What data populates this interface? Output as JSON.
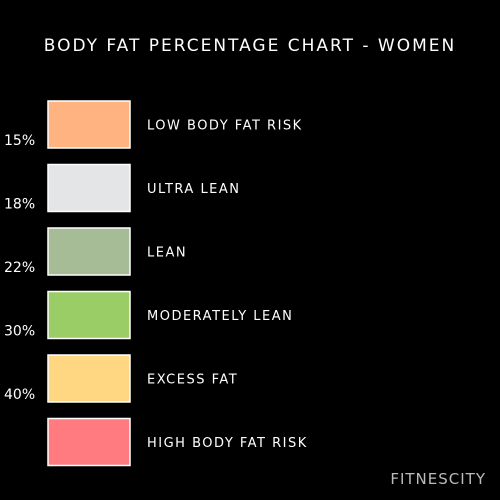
{
  "chart_data": {
    "type": "table",
    "title": "BODY FAT PERCENTAGE CHART - WOMEN",
    "thresholds": [
      "15%",
      "18%",
      "22%",
      "30%",
      "40%"
    ],
    "categories": [
      {
        "label": "LOW BODY FAT RISK",
        "color": "#FFB380"
      },
      {
        "label": "ULTRA LEAN",
        "color": "#E4E5E7"
      },
      {
        "label": "LEAN",
        "color": "#A6BC96"
      },
      {
        "label": "MODERATELY LEAN",
        "color": "#9ACD66"
      },
      {
        "label": "EXCESS FAT",
        "color": "#FFD783"
      },
      {
        "label": "HIGH BODY FAT RISK",
        "color": "#FF7B80"
      }
    ]
  },
  "watermark": "FITNESCITY"
}
